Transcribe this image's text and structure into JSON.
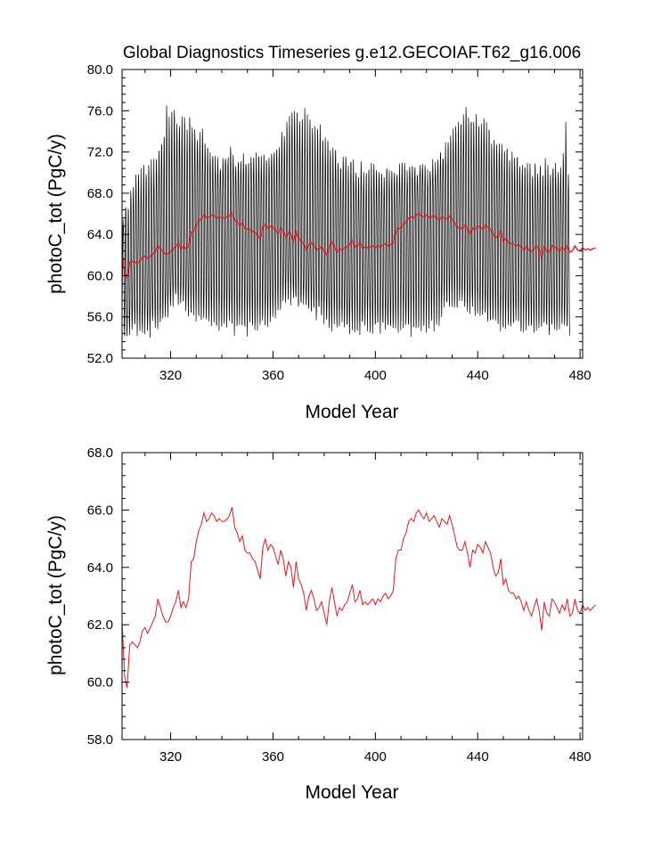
{
  "colors": {
    "monthly": "#000000",
    "annual": "#e41a1c",
    "frame": "#000000"
  },
  "chart_data": [
    {
      "type": "line",
      "title": "Global Diagnostics Timeseries g.e12.GECOIAF.T62_g16.006",
      "xlabel": "Model Year",
      "ylabel": "photoC_tot (PgC/y)",
      "xlim": [
        301,
        481
      ],
      "ylim": [
        52,
        80
      ],
      "xticks": [
        320,
        360,
        400,
        440,
        480
      ],
      "xtick_labels": [
        "320",
        "360",
        "400",
        "440",
        "480"
      ],
      "yticks": [
        52,
        56,
        60,
        64,
        68,
        72,
        76,
        80
      ],
      "ytick_labels": [
        "52.0",
        "56.0",
        "60.0",
        "64.0",
        "68.0",
        "72.0",
        "76.0",
        "80.0"
      ],
      "grid": false,
      "series": [
        {
          "style": "monthly",
          "color": "#000000",
          "annual_max": [
            65.5,
            67.0,
            66.5,
            68.5,
            69.0,
            69.5,
            69.5,
            70.0,
            70.5,
            70.5,
            71.0,
            71.5,
            71.0,
            71.5,
            72.0,
            73.0,
            74.0,
            76.5,
            75.5,
            76.0,
            76.5,
            75.0,
            74.5,
            75.5,
            75.0,
            74.5,
            75.5,
            75.0,
            74.0,
            73.5,
            73.5,
            74.0,
            73.0,
            72.5,
            72.0,
            71.5,
            71.5,
            71.0,
            71.0,
            71.5,
            72.0,
            71.5,
            72.0,
            71.5,
            71.0,
            71.5,
            71.0,
            71.5,
            71.5,
            71.0,
            72.0,
            71.5,
            71.5,
            72.0,
            71.5,
            72.0,
            71.0,
            71.5,
            72.0,
            72.5,
            72.5,
            73.0,
            73.5,
            74.0,
            75.0,
            75.5,
            76.5,
            76.0,
            75.5,
            75.0,
            75.5,
            76.0,
            75.5,
            75.0,
            74.5,
            74.5,
            74.0,
            74.5,
            73.5,
            73.5,
            73.0,
            72.5,
            72.0,
            72.5,
            71.5,
            71.0,
            71.5,
            71.5,
            70.5,
            71.0,
            71.0,
            70.5,
            70.0,
            71.0,
            70.5,
            70.0,
            70.5,
            70.5,
            71.0,
            70.5,
            70.0,
            70.5,
            70.0,
            70.5,
            70.5,
            70.0,
            70.5,
            70.0,
            70.5,
            71.0,
            70.5,
            70.0,
            70.5,
            71.0,
            70.5,
            70.0,
            70.5,
            71.0,
            70.5,
            70.0,
            70.5,
            71.0,
            71.0,
            71.0,
            72.0,
            72.0,
            72.5,
            72.5,
            73.5,
            74.0,
            74.0,
            74.5,
            75.0,
            75.5,
            76.0,
            75.5,
            75.5,
            75.0,
            76.0,
            75.0,
            74.5,
            75.0,
            74.5,
            74.0,
            73.5,
            73.5,
            73.0,
            72.5,
            73.0,
            72.0,
            72.5,
            71.5,
            72.0,
            71.5,
            71.5,
            71.0,
            71.0,
            70.5,
            71.0,
            70.5,
            70.0,
            71.0,
            70.5,
            70.5,
            70.0,
            71.0,
            70.5,
            70.0,
            70.5,
            71.0,
            70.0,
            70.5,
            71.5,
            74.5,
            70.0
          ],
          "annual_min": [
            54.5,
            53.5,
            54.5,
            55.0,
            55.0,
            54.5,
            55.0,
            54.5,
            54.0,
            55.0,
            54.5,
            55.0,
            55.5,
            54.5,
            55.0,
            55.5,
            56.5,
            56.0,
            57.0,
            57.5,
            58.0,
            57.5,
            57.0,
            57.5,
            57.0,
            56.5,
            57.0,
            56.5,
            56.0,
            56.5,
            56.0,
            55.5,
            56.0,
            55.5,
            55.5,
            55.0,
            55.5,
            55.0,
            55.5,
            55.0,
            54.5,
            55.0,
            55.0,
            54.5,
            55.0,
            55.0,
            55.5,
            55.0,
            54.5,
            55.0,
            55.5,
            55.0,
            55.0,
            55.5,
            55.0,
            55.5,
            55.0,
            55.5,
            55.5,
            56.0,
            56.5,
            57.0,
            57.0,
            57.5,
            58.0,
            57.5,
            58.0,
            57.5,
            57.5,
            57.0,
            57.5,
            57.0,
            56.5,
            57.0,
            56.5,
            56.0,
            56.5,
            56.0,
            55.5,
            56.0,
            55.5,
            55.0,
            55.5,
            55.5,
            55.0,
            55.5,
            55.0,
            55.0,
            54.5,
            55.0,
            54.5,
            55.0,
            54.5,
            55.0,
            54.5,
            55.0,
            55.0,
            54.5,
            55.0,
            55.0,
            54.5,
            55.0,
            55.0,
            54.5,
            55.0,
            55.0,
            55.0,
            54.5,
            55.0,
            55.0,
            55.0,
            55.0,
            54.5,
            55.0,
            54.5,
            55.0,
            55.0,
            55.0,
            54.5,
            55.0,
            55.0,
            55.0,
            55.5,
            55.5,
            56.0,
            56.5,
            57.0,
            57.0,
            57.5,
            57.0,
            57.5,
            57.0,
            57.5,
            57.0,
            57.0,
            56.5,
            57.0,
            56.5,
            56.0,
            56.5,
            56.0,
            56.0,
            55.5,
            56.0,
            55.5,
            56.0,
            55.5,
            55.0,
            55.5,
            55.0,
            55.5,
            55.0,
            55.0,
            55.0,
            55.5,
            55.0,
            54.5,
            55.0,
            55.0,
            55.0,
            55.0,
            54.5,
            55.0,
            55.0,
            55.0,
            55.0,
            54.5,
            55.0,
            55.0,
            54.5,
            55.0,
            55.0,
            55.0,
            55.0,
            54.5,
            54.5
          ]
        },
        {
          "style": "annual-mean",
          "color": "#e41a1c",
          "x_start": 301,
          "x_step": 1,
          "values": [
            62.1,
            60.2,
            59.8,
            61.3,
            61.4,
            61.3,
            61.2,
            61.4,
            61.8,
            61.9,
            61.7,
            61.9,
            62.1,
            62.3,
            62.9,
            62.6,
            62.3,
            62.1,
            62.1,
            62.3,
            62.6,
            62.8,
            63.2,
            62.6,
            62.8,
            62.6,
            62.9,
            64.2,
            64.3,
            64.9,
            65.3,
            65.5,
            65.9,
            65.6,
            65.7,
            65.9,
            65.8,
            65.6,
            65.7,
            65.6,
            65.6,
            65.7,
            65.8,
            66.1,
            65.4,
            65.2,
            64.9,
            65.1,
            64.6,
            64.5,
            64.5,
            64.3,
            64.2,
            63.9,
            63.6,
            64.7,
            65.0,
            64.6,
            64.8,
            64.7,
            64.4,
            64.1,
            64.6,
            64.3,
            63.7,
            64.2,
            64.0,
            63.3,
            64.2,
            63.6,
            63.4,
            63.1,
            62.5,
            63.0,
            63.2,
            62.9,
            62.5,
            62.6,
            62.8,
            62.4,
            62.0,
            62.8,
            63.3,
            62.8,
            62.3,
            62.6,
            62.5,
            62.7,
            62.8,
            63.1,
            63.4,
            62.8,
            62.9,
            63.2,
            62.7,
            62.8,
            62.7,
            62.8,
            62.9,
            62.7,
            62.9,
            62.8,
            63.0,
            63.1,
            62.9,
            63.0,
            63.2,
            64.3,
            64.6,
            64.6,
            65.0,
            65.2,
            65.6,
            65.7,
            65.6,
            65.9,
            66.0,
            65.8,
            65.7,
            65.9,
            65.6,
            65.7,
            65.8,
            65.6,
            65.4,
            65.7,
            65.6,
            65.5,
            65.8,
            65.5,
            65.1,
            64.7,
            64.6,
            64.6,
            64.9,
            64.5,
            64.0,
            64.6,
            64.5,
            64.8,
            64.7,
            64.5,
            64.9,
            64.7,
            64.5,
            64.0,
            63.7,
            63.8,
            64.3,
            63.4,
            63.6,
            63.2,
            63.1,
            63.1,
            62.9,
            63.0,
            62.8,
            62.5,
            62.8,
            62.5,
            62.3,
            62.6,
            62.9,
            62.5,
            61.8,
            62.8,
            62.4,
            62.3,
            62.9,
            62.8,
            62.6,
            62.4,
            62.7,
            62.5,
            62.9,
            62.3,
            62.4,
            62.9,
            62.5,
            62.4,
            62.7,
            62.5,
            62.6,
            62.5,
            62.6,
            62.7
          ]
        }
      ]
    },
    {
      "type": "line",
      "title": "",
      "xlabel": "Model Year",
      "ylabel": "photoC_tot (PgC/y)",
      "xlim": [
        301,
        481
      ],
      "ylim": [
        58,
        68
      ],
      "xticks": [
        320,
        360,
        400,
        440,
        480
      ],
      "xtick_labels": [
        "320",
        "360",
        "400",
        "440",
        "480"
      ],
      "yticks": [
        58,
        60,
        62,
        64,
        66,
        68
      ],
      "ytick_labels": [
        "58.0",
        "60.0",
        "62.0",
        "64.0",
        "66.0",
        "68.0"
      ],
      "grid": false,
      "series": [
        {
          "style": "annual-mean",
          "color": "#e41a1c",
          "x_start": 301,
          "x_step": 1,
          "same_as_top_annual": true
        }
      ]
    }
  ]
}
